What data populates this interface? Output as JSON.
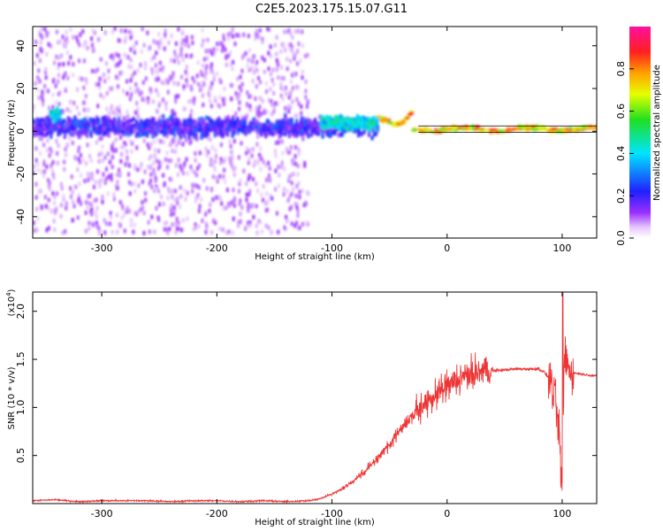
{
  "title": "C2E5.2023.175.15.07.G11",
  "colors": {
    "snr_line": "#ee3333",
    "frame": "#000000"
  },
  "chart_data": [
    {
      "type": "heatmap",
      "xlabel": "Height of straight line (km)",
      "ylabel": "Frequency (Hz)",
      "xlim": [
        -360,
        130
      ],
      "ylim": [
        -50,
        49
      ],
      "xticks": [
        -300,
        -200,
        -100,
        0,
        100
      ],
      "xtick_labels": [
        "-300",
        "-200",
        "-100",
        "0",
        "100"
      ],
      "yticks": [
        -40,
        -20,
        0,
        20,
        40
      ],
      "ytick_labels": [
        "-40",
        "-20",
        "0",
        "20",
        "40"
      ],
      "colorbar": {
        "label": "Normalized spectral amplitude",
        "range": [
          0,
          1
        ],
        "ticks": [
          0.0,
          0.2,
          0.4,
          0.6,
          0.8
        ],
        "tick_labels": [
          "0.0",
          "0.2",
          "0.4",
          "0.6",
          "0.8"
        ],
        "colormap": "rainbow (white-violet-blue-cyan-green-yellow-orange-red-magenta)"
      },
      "features": [
        {
          "x_range": [
            -360,
            -120
          ],
          "center_freq": 0,
          "freq_spread": 48,
          "description": "diffuse low-amplitude scatter"
        },
        {
          "x_range": [
            -360,
            -60
          ],
          "center_freq": 2,
          "freq_spread": 12,
          "description": "dense band, amplitude ~0.1-0.3"
        },
        {
          "x_range": [
            -345,
            -335
          ],
          "center_freq": 8,
          "freq_spread": 8,
          "description": "local feature, amplitude ~0.3-0.5"
        },
        {
          "x_range": [
            -110,
            -60
          ],
          "center_freq": 4,
          "freq_spread": 8,
          "description": "band, amplitude ~0.3-0.5"
        },
        {
          "x_range": [
            -60,
            130
          ],
          "center_freq": 1,
          "freq_spread": 3,
          "description": "narrow tone, amplitude ~0.6-0.9"
        }
      ]
    },
    {
      "type": "line",
      "xlabel": "Height of straight line (km)",
      "ylabel": "SNR (10 * v/v)",
      "y_multiplier_label": "(x10",
      "y_multiplier_exp": "4",
      "y_multiplier_close": ")",
      "xlim": [
        -360,
        130
      ],
      "ylim": [
        0,
        2.2
      ],
      "xticks": [
        -300,
        -200,
        -100,
        0,
        100
      ],
      "xtick_labels": [
        "-300",
        "-200",
        "-100",
        "0",
        "100"
      ],
      "yticks": [
        0.5,
        1.0,
        1.5,
        2.0
      ],
      "ytick_labels": [
        "0.5",
        "1.0",
        "1.5",
        "2.0"
      ],
      "series": [
        {
          "x": [
            -360,
            -340,
            -320,
            -300,
            -280,
            -260,
            -240,
            -220,
            -200,
            -180,
            -160,
            -140,
            -120,
            -110,
            -100,
            -90,
            -80,
            -70,
            -60,
            -50,
            -40,
            -30,
            -20,
            -10,
            0,
            10,
            20,
            30,
            40,
            50,
            60,
            70,
            80,
            85,
            90,
            95,
            98,
            100,
            102,
            105,
            110,
            120,
            130
          ],
          "y": [
            0.03,
            0.04,
            0.02,
            0.03,
            0.03,
            0.03,
            0.02,
            0.03,
            0.03,
            0.02,
            0.03,
            0.02,
            0.03,
            0.05,
            0.1,
            0.16,
            0.25,
            0.35,
            0.48,
            0.62,
            0.78,
            0.92,
            1.02,
            1.12,
            1.2,
            1.28,
            1.33,
            1.37,
            1.38,
            1.39,
            1.4,
            1.4,
            1.4,
            1.36,
            1.28,
            1.0,
            0.6,
            0.1,
            1.6,
            1.42,
            1.36,
            1.34,
            1.33
          ]
        }
      ]
    }
  ]
}
